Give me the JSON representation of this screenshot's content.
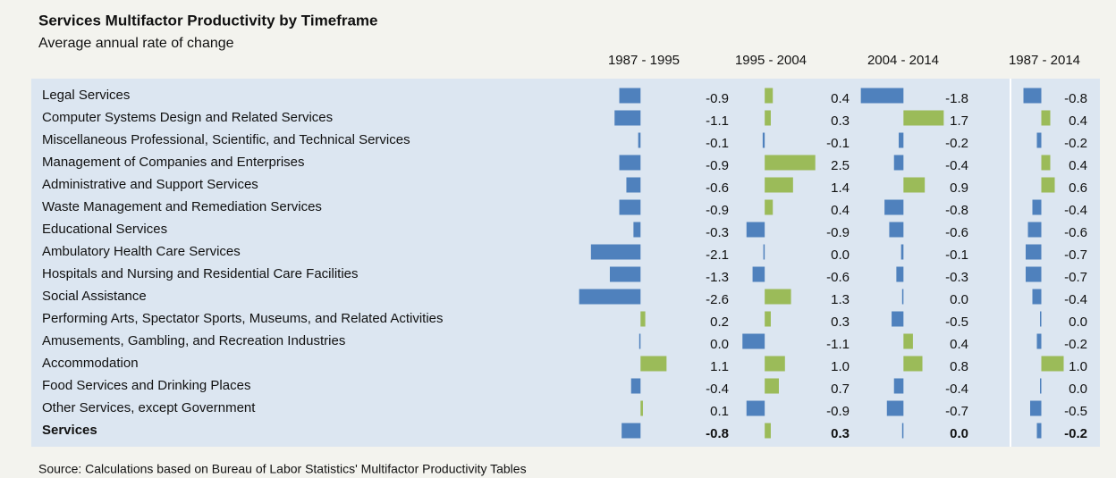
{
  "chart_data": {
    "type": "bar",
    "orientation": "horizontal",
    "title": "Services Multifactor Productivity by Timeframe",
    "subtitle": "Average annual rate of change",
    "source": "Source: Calculations based on Bureau of Labor Statistics' Multifactor Productivity Tables",
    "colors": {
      "negative": "#4f81bd",
      "positive": "#9bbb59"
    },
    "categories": [
      "Legal Services",
      "Computer Systems Design and Related Services",
      "Miscellaneous Professional, Scientific, and Technical Services",
      "Management of Companies and Enterprises",
      "Administrative and Support Services",
      "Waste Management and Remediation Services",
      "Educational Services",
      "Ambulatory Health Care Services",
      "Hospitals and Nursing and Residential Care Facilities",
      "Social Assistance",
      "Performing Arts, Spectator Sports, Museums, and Related Activities",
      "Amusements, Gambling, and Recreation Industries",
      "Accommodation",
      "Food Services and Drinking Places",
      "Other Services, except Government",
      "Services"
    ],
    "series": [
      {
        "name": "1987 - 1995",
        "xlim": [
          -2.7,
          1.2
        ],
        "values": [
          -0.9,
          -1.1,
          -0.1,
          -0.9,
          -0.6,
          -0.9,
          -0.3,
          -2.1,
          -1.3,
          -2.6,
          0.2,
          0.0,
          1.1,
          -0.4,
          0.1,
          -0.8
        ],
        "value_labels": [
          "-0.9",
          "-1.1",
          "-0.1",
          "-0.9",
          "-0.6",
          "-0.9",
          "-0.3",
          "-2.1",
          "-1.3",
          "-2.6",
          "0.2",
          "0.0",
          "1.1",
          "-0.4",
          "0.1",
          "-0.8"
        ]
      },
      {
        "name": "1995 - 2004",
        "xlim": [
          -1.2,
          2.6
        ],
        "values": [
          0.4,
          0.3,
          -0.1,
          2.5,
          1.4,
          0.4,
          -0.9,
          0.0,
          -0.6,
          1.3,
          0.3,
          -1.1,
          1.0,
          0.7,
          -0.9,
          0.3
        ],
        "value_labels": [
          "0.4",
          "0.3",
          "-0.1",
          "2.5",
          "1.4",
          "0.4",
          "-0.9",
          "0.0",
          "-0.6",
          "1.3",
          "0.3",
          "-1.1",
          "1.0",
          "0.7",
          "-0.9",
          "0.3"
        ]
      },
      {
        "name": "2004 - 2014",
        "xlim": [
          -1.9,
          1.8
        ],
        "values": [
          -1.8,
          1.7,
          -0.2,
          -0.4,
          0.9,
          -0.8,
          -0.6,
          -0.1,
          -0.3,
          0.0,
          -0.5,
          0.4,
          0.8,
          -0.4,
          -0.7,
          0.0
        ],
        "value_labels": [
          "-1.8",
          "1.7",
          "-0.2",
          "-0.4",
          "0.9",
          "-0.8",
          "-0.6",
          "-0.1",
          "-0.3",
          "0.0",
          "-0.5",
          "0.4",
          "0.8",
          "-0.4",
          "-0.7",
          "0.0"
        ]
      },
      {
        "name": "1987 - 2014",
        "xlim": [
          -0.9,
          1.1
        ],
        "values": [
          -0.8,
          0.4,
          -0.2,
          0.4,
          0.6,
          -0.4,
          -0.6,
          -0.7,
          -0.7,
          -0.4,
          0.0,
          -0.2,
          1.0,
          0.0,
          -0.5,
          -0.2
        ],
        "value_labels": [
          "-0.8",
          "0.4",
          "-0.2",
          "0.4",
          "0.6",
          "-0.4",
          "-0.6",
          "-0.7",
          "-0.7",
          "-0.4",
          "0.0",
          "-0.2",
          "1.0",
          "0.0",
          "-0.5",
          "-0.2"
        ]
      }
    ]
  }
}
